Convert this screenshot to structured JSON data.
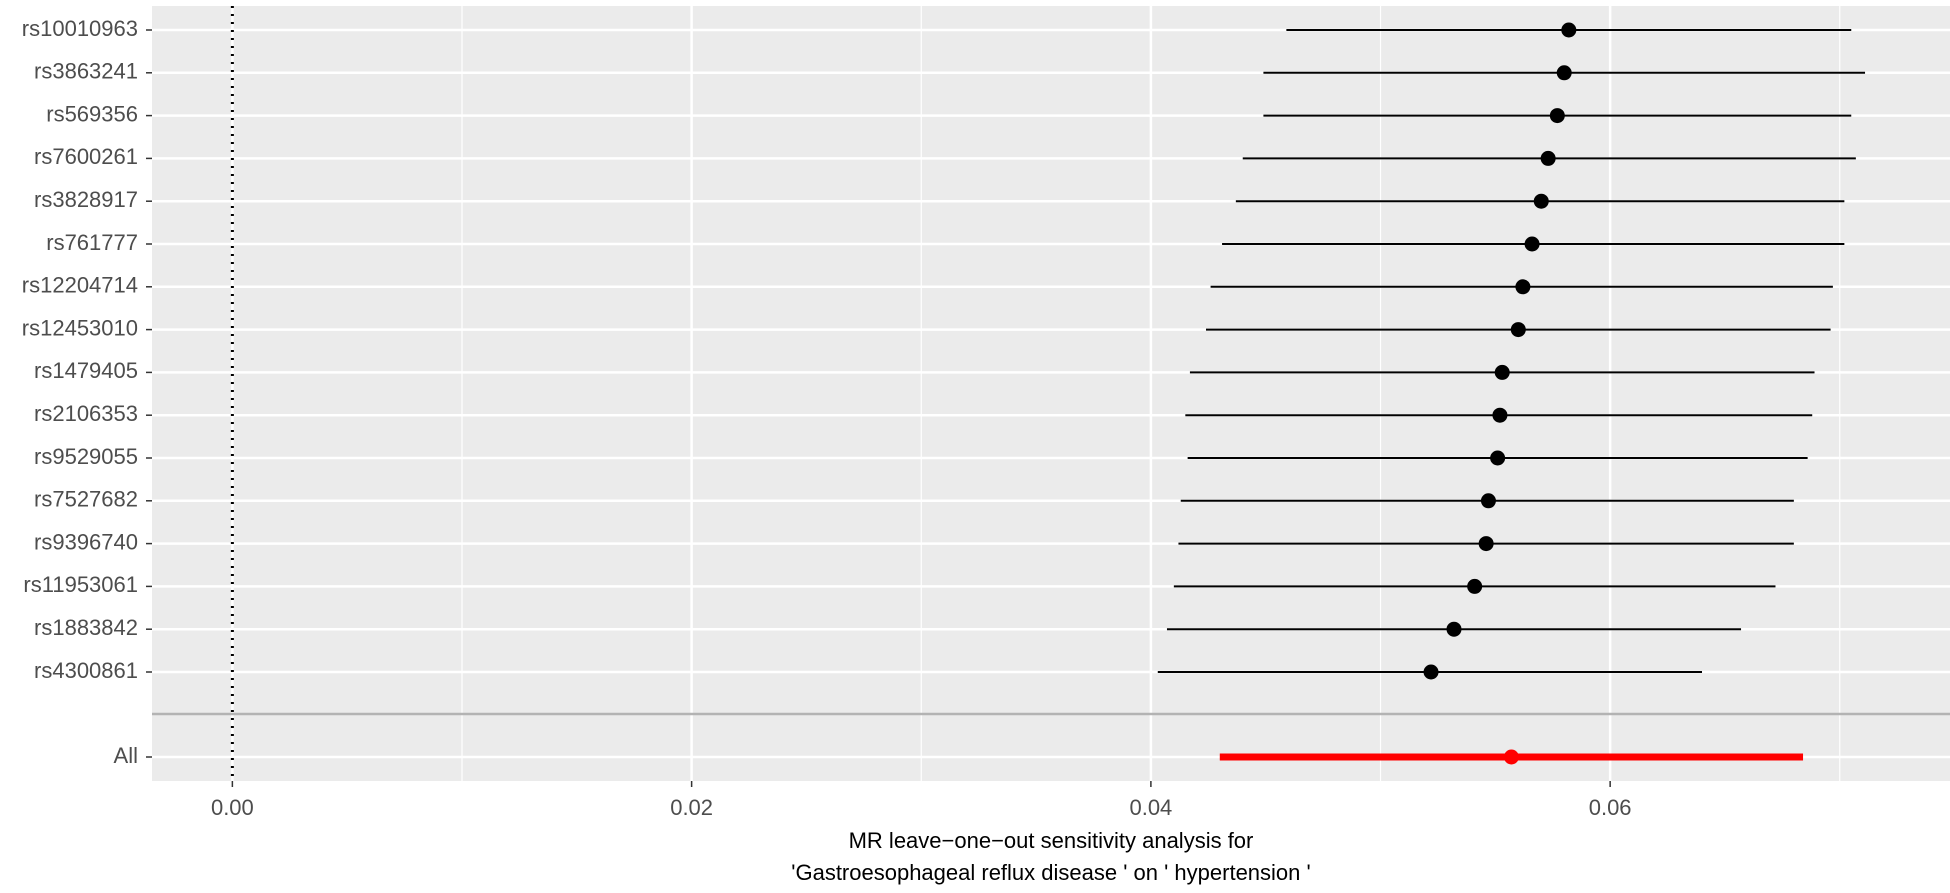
{
  "chart_data": {
    "type": "forest",
    "categories": [
      "rs10010963",
      "rs3863241",
      "rs569356",
      "rs7600261",
      "rs3828917",
      "rs761777",
      "rs12204714",
      "rs12453010",
      "rs1479405",
      "rs2106353",
      "rs9529055",
      "rs7527682",
      "rs9396740",
      "rs11953061",
      "rs1883842",
      "rs4300861"
    ],
    "values": [
      0.0582,
      0.058,
      0.0577,
      0.0573,
      0.057,
      0.0566,
      0.0562,
      0.056,
      0.0553,
      0.0552,
      0.0551,
      0.0547,
      0.0546,
      0.0541,
      0.0532,
      0.0522
    ],
    "lower": [
      0.0459,
      0.0449,
      0.0449,
      0.044,
      0.0437,
      0.0431,
      0.0426,
      0.0424,
      0.0417,
      0.0415,
      0.0416,
      0.0413,
      0.0412,
      0.041,
      0.0407,
      0.0403
    ],
    "upper": [
      0.0705,
      0.0711,
      0.0705,
      0.0707,
      0.0702,
      0.0702,
      0.0697,
      0.0696,
      0.0689,
      0.0688,
      0.0686,
      0.068,
      0.068,
      0.0672,
      0.0657,
      0.064
    ],
    "color": "#000000",
    "summary": {
      "category": "All",
      "value": 0.0557,
      "lower": 0.043,
      "upper": 0.0684,
      "color": "#ff0000"
    },
    "xlim": [
      -0.0035,
      0.0748
    ],
    "xticks": [
      {
        "value": 0,
        "label": "0.00"
      },
      {
        "value": 0.02,
        "label": "0.02"
      },
      {
        "value": 0.04,
        "label": "0.04"
      },
      {
        "value": 0.06,
        "label": "0.06"
      }
    ],
    "minor_xticks": [
      0.01,
      0.03,
      0.05,
      0.07
    ],
    "reference_line": 0,
    "grid": true,
    "xlabel": [
      "MR leave−one−out sensitivity analysis for",
      "'Gastroesophageal reflux disease ' on ' hypertension '"
    ]
  }
}
